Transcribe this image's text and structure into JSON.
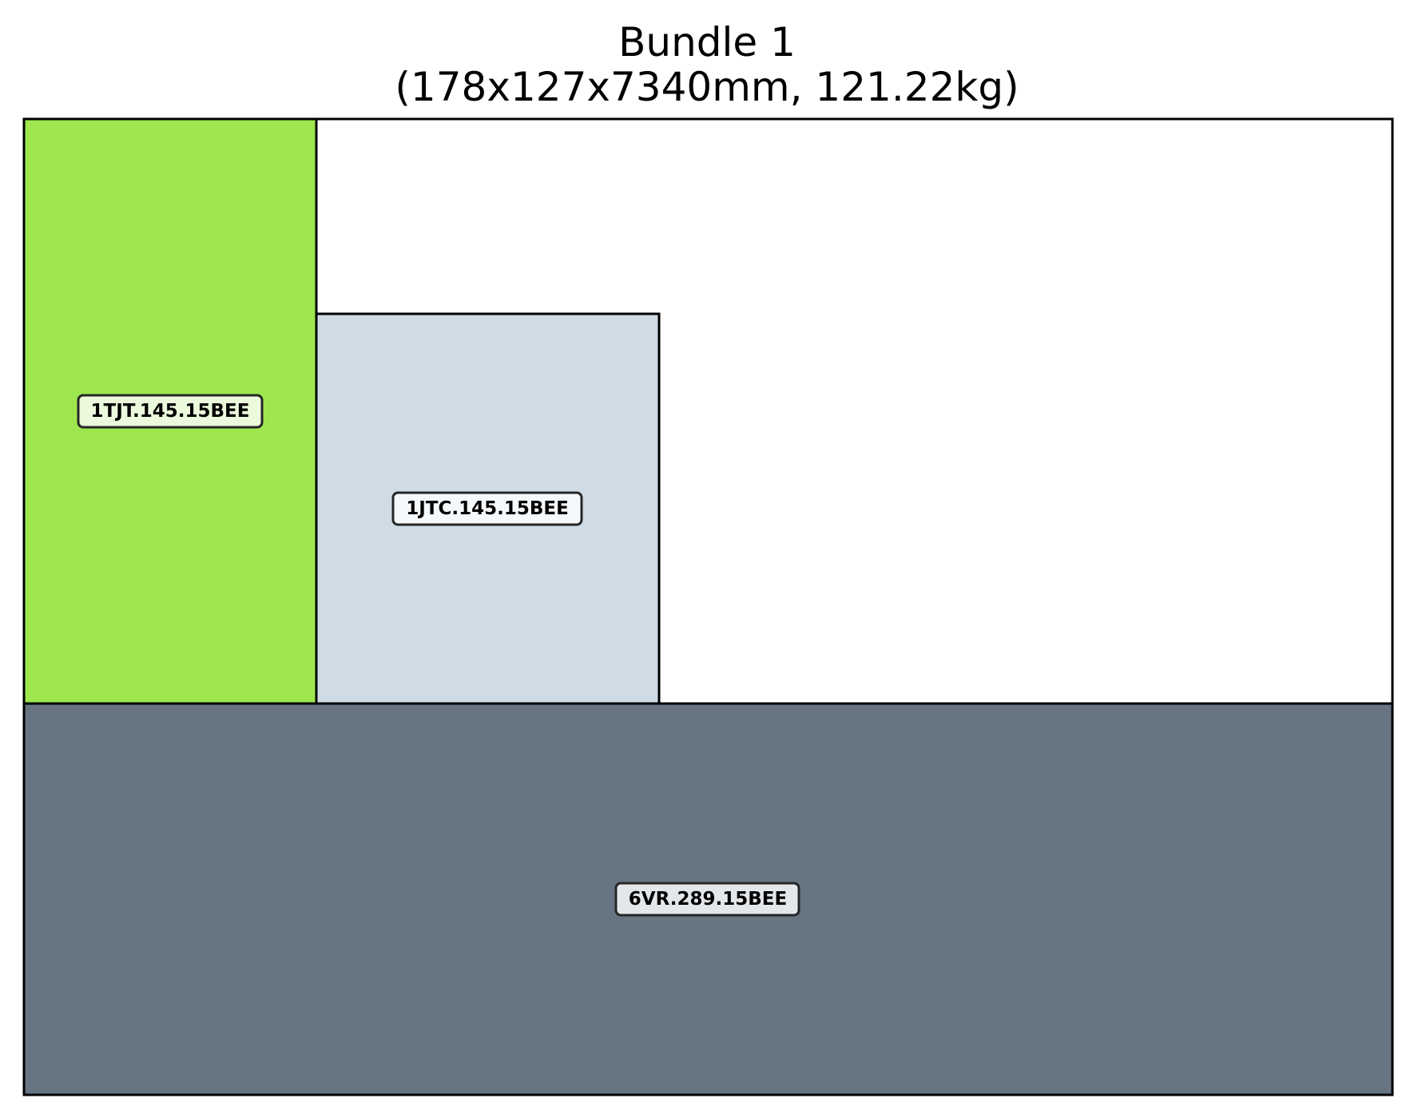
{
  "title": {
    "line1": "Bundle 1",
    "line2": "(178x127x7340mm, 121.22kg)"
  },
  "pieces": [
    {
      "id": "6VR.289.15BEE",
      "fill": "#677582",
      "label_bg": "#e4e7ea"
    },
    {
      "id": "1TJT.145.15BEE",
      "fill": "#9de64e",
      "label_bg": "#ebf9dc"
    },
    {
      "id": "1JTC.145.15BEE",
      "fill": "#cfdce5",
      "label_bg": "#f6f9fb"
    }
  ],
  "colors": {
    "outline": "#000000",
    "label_border": "#262626",
    "background": "#ffffff"
  }
}
